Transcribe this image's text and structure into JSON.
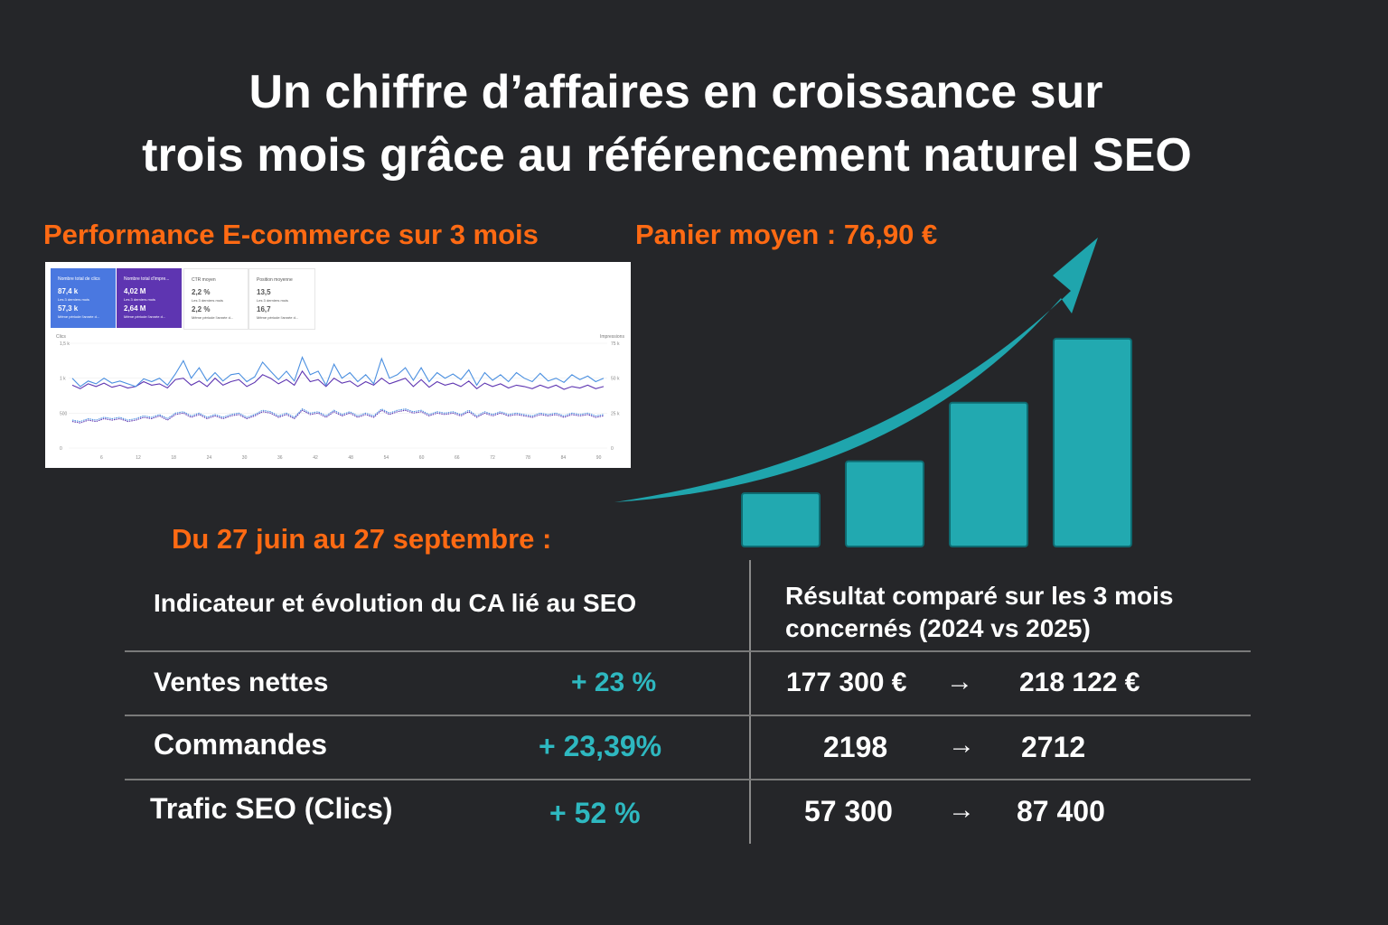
{
  "title": {
    "line1": "Un chiffre d’affaires en croissance sur",
    "line2": "trois mois grâce au référencement naturel SEO"
  },
  "performance_label": "Performance E-commerce sur 3 mois",
  "panier_label": "Panier moyen : 76,90 €",
  "period_label": "Du 27 juin au 27 septembre :",
  "colors": {
    "accent_orange": "#ff6a13",
    "accent_teal": "#2eb8c0",
    "background": "#252629"
  },
  "screenshot": {
    "cards": [
      {
        "label": "Nombre total de clics",
        "value_current": "87,4 k",
        "sub_current": "Les 3 derniers mois",
        "value_previous": "57,3 k",
        "sub_previous": "Même période l'année d..."
      },
      {
        "label": "Nombre total d'impre...",
        "value_current": "4,02 M",
        "sub_current": "Les 3 derniers mois",
        "value_previous": "2,64 M",
        "sub_previous": "Même période l'année d..."
      },
      {
        "label": "CTR moyen",
        "value_current": "2,2 %",
        "sub_current": "Les 3 derniers mois",
        "value_previous": "2,2 %",
        "sub_previous": "Même période l'année d..."
      },
      {
        "label": "Position moyenne",
        "value_current": "13,5",
        "sub_current": "Les 3 derniers mois",
        "value_previous": "16,7",
        "sub_previous": "Même période l'année d..."
      }
    ],
    "left_axis_title": "Clics",
    "right_axis_title": "Impressions",
    "left_ticks": [
      "1,5 k",
      "1 k",
      "500",
      "0"
    ],
    "right_ticks": [
      "75 k",
      "50 k",
      "25 k",
      "0"
    ],
    "x_ticks": [
      "6",
      "12",
      "18",
      "24",
      "30",
      "36",
      "42",
      "48",
      "54",
      "60",
      "66",
      "72",
      "78",
      "84",
      "90"
    ],
    "series": {
      "clics_current": [
        1000,
        880,
        960,
        920,
        1000,
        930,
        960,
        920,
        880,
        990,
        950,
        1000,
        900,
        1060,
        1250,
        1000,
        1150,
        960,
        1080,
        960,
        1050,
        1070,
        950,
        1020,
        1230,
        1100,
        980,
        1100,
        960,
        1300,
        1050,
        1100,
        900,
        1200,
        1000,
        1080,
        950,
        1050,
        920,
        1280,
        1000,
        1050,
        1150,
        970,
        1150,
        950,
        1080,
        1000,
        1060,
        980,
        1120,
        900,
        1080,
        970,
        1050,
        950,
        1080,
        1000,
        950,
        1070,
        960,
        1000,
        940,
        1050,
        980,
        1030,
        950,
        1000
      ],
      "clics_previous": [
        900,
        850,
        920,
        880,
        930,
        870,
        900,
        860,
        880,
        950,
        900,
        920,
        860,
        980,
        1000,
        900,
        960,
        880,
        1000,
        900,
        950,
        980,
        880,
        940,
        1050,
        1000,
        920,
        980,
        900,
        1100,
        950,
        980,
        880,
        1000,
        930,
        960,
        880,
        950,
        900,
        1000,
        920,
        960,
        1000,
        880,
        980,
        870,
        950,
        900,
        930,
        880,
        960,
        850,
        930,
        880,
        920,
        860,
        900,
        880,
        850,
        900,
        860,
        900,
        840,
        880,
        860,
        900,
        850,
        880
      ],
      "impr_current": [
        20,
        19,
        21,
        20,
        22,
        21,
        22,
        20,
        21,
        23,
        22,
        24,
        21,
        25,
        26,
        23,
        25,
        22,
        24,
        22,
        24,
        25,
        22,
        24,
        27,
        26,
        23,
        25,
        22,
        28,
        25,
        26,
        23,
        27,
        24,
        26,
        23,
        25,
        23,
        28,
        25,
        27,
        28,
        26,
        27,
        24,
        26,
        25,
        26,
        24,
        27,
        23,
        26,
        24,
        26,
        24,
        25,
        24,
        23,
        25,
        24,
        25,
        23,
        25,
        24,
        25,
        23,
        24
      ],
      "impr_previous": [
        19,
        18,
        20,
        19,
        21,
        20,
        21,
        19,
        20,
        22,
        21,
        23,
        20,
        24,
        25,
        22,
        24,
        21,
        23,
        21,
        23,
        24,
        21,
        23,
        26,
        25,
        22,
        24,
        21,
        27,
        24,
        25,
        22,
        26,
        23,
        25,
        22,
        24,
        22,
        27,
        24,
        26,
        27,
        25,
        26,
        23,
        25,
        24,
        25,
        23,
        26,
        22,
        25,
        23,
        25,
        23,
        24,
        23,
        22,
        24,
        23,
        24,
        22,
        24,
        23,
        24,
        22,
        23
      ]
    }
  },
  "bars": {
    "values": [
      1,
      1.6,
      2.7,
      3.9
    ]
  },
  "table": {
    "header_left": "Indicateur et évolution du CA lié au SEO",
    "header_right_line1": "Résultat comparé sur les 3 mois",
    "header_right_line2": "concernés (2024 vs 2025)",
    "rows": [
      {
        "label": "Ventes nettes",
        "change": "+ 23 %",
        "before": "177 300 €",
        "arrow": "→",
        "after": "218 122 €"
      },
      {
        "label": "Commandes",
        "change": "+  23,39%",
        "before": "2198",
        "arrow": "→",
        "after": "2712"
      },
      {
        "label": "Trafic SEO (Clics)",
        "change": "+  52 %",
        "before": "57 300",
        "arrow": "→",
        "after": "87 400"
      }
    ]
  }
}
